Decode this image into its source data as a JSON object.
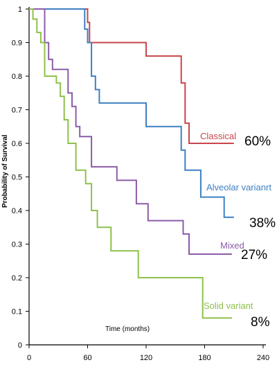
{
  "chart_data": {
    "type": "line",
    "step": true,
    "title": "",
    "xlabel": "Time (months)",
    "ylabel": "Probability of Survival",
    "xlim": [
      0,
      240
    ],
    "ylim": [
      0,
      1
    ],
    "xticks": [
      "0",
      "60",
      "120",
      "180",
      "240"
    ],
    "yticks": [
      "0",
      "0.1",
      "0.2",
      "0.3",
      "0.4",
      "0.5",
      "0.6",
      "0.7",
      "0.8",
      "0.9",
      "1"
    ],
    "grid": false,
    "legend": "inline labels at line ends",
    "series": [
      {
        "name": "Classical",
        "final_label": "60%",
        "color": "#c8454a",
        "x": [
          0,
          56,
          60,
          62,
          120,
          156,
          160,
          164,
          210
        ],
        "y": [
          1,
          1,
          0.96,
          0.9,
          0.86,
          0.78,
          0.66,
          0.6,
          0.6
        ]
      },
      {
        "name": "Alveolar varianrt",
        "final_label": "38%",
        "color": "#3d7fc1",
        "x": [
          0,
          57,
          60,
          64,
          68,
          72,
          120,
          156,
          160,
          176,
          200,
          210
        ],
        "y": [
          1,
          0.94,
          0.9,
          0.8,
          0.76,
          0.72,
          0.65,
          0.58,
          0.52,
          0.44,
          0.38,
          0.38
        ]
      },
      {
        "name": "Mixed",
        "final_label": "27%",
        "color": "#8b5ba8",
        "x": [
          0,
          16,
          20,
          24,
          40,
          44,
          48,
          52,
          64,
          68,
          90,
          110,
          122,
          158,
          164,
          170,
          208
        ],
        "y": [
          1,
          0.9,
          0.85,
          0.82,
          0.75,
          0.71,
          0.65,
          0.62,
          0.53,
          0.53,
          0.49,
          0.42,
          0.37,
          0.33,
          0.27,
          0.27,
          0.27
        ]
      },
      {
        "name": "Solid variant",
        "final_label": "8%",
        "color": "#8ec04a",
        "x": [
          0,
          4,
          8,
          12,
          16,
          28,
          32,
          36,
          40,
          48,
          58,
          64,
          70,
          84,
          112,
          178,
          208
        ],
        "y": [
          1,
          0.97,
          0.93,
          0.9,
          0.8,
          0.78,
          0.74,
          0.67,
          0.6,
          0.52,
          0.48,
          0.4,
          0.35,
          0.28,
          0.2,
          0.08,
          0.08
        ]
      }
    ]
  }
}
